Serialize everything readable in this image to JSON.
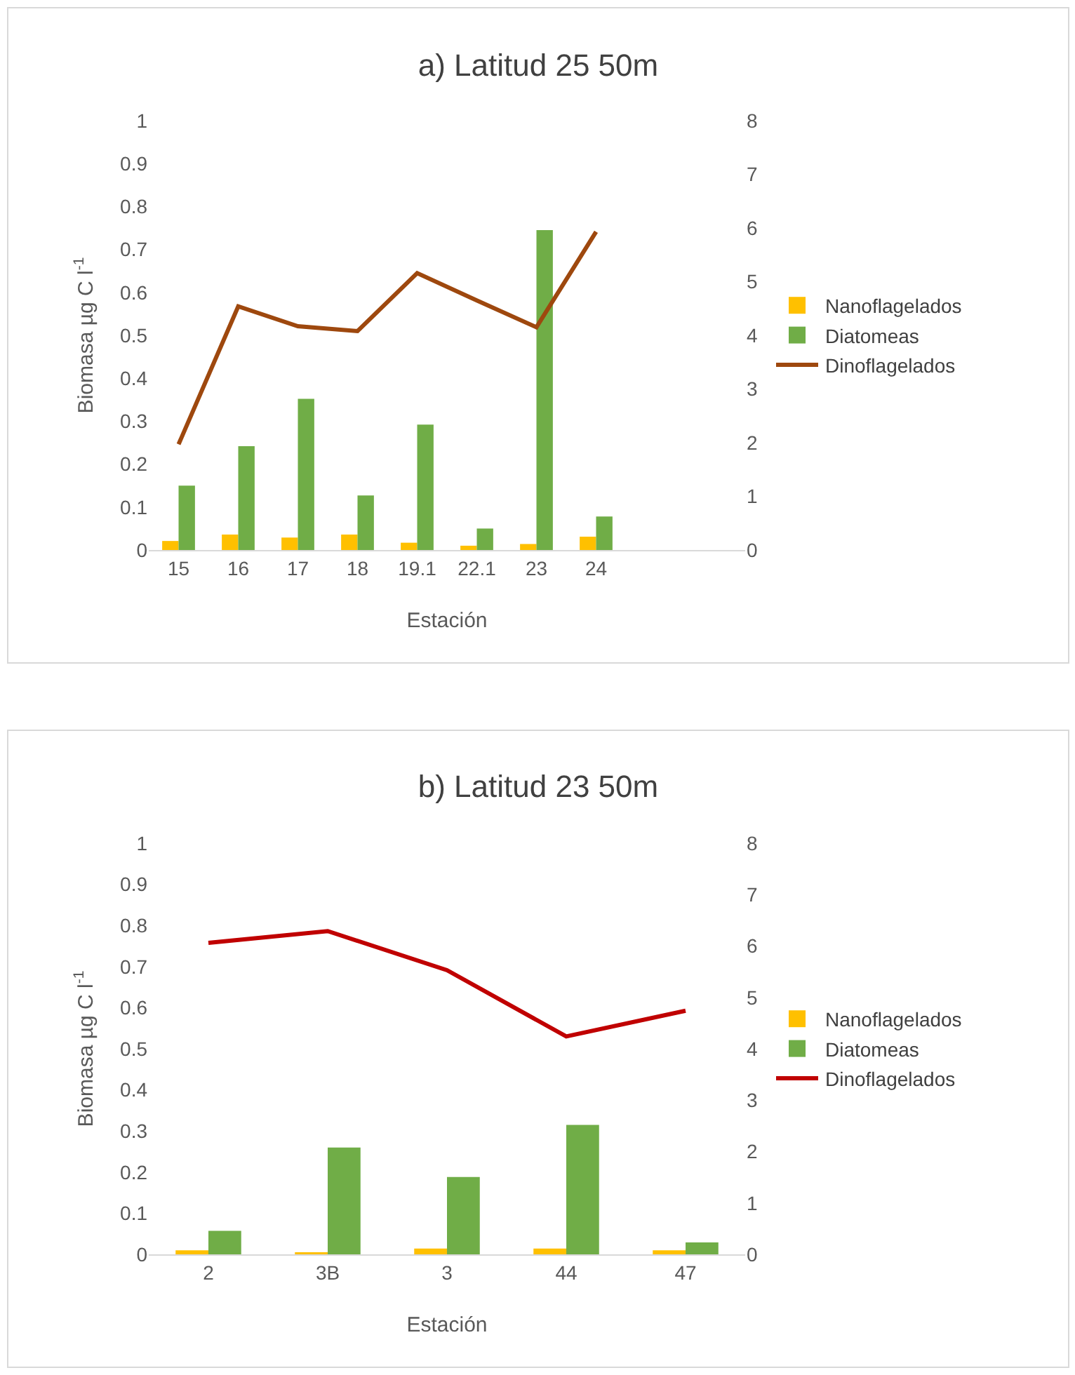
{
  "chart_data": [
    {
      "type": "bar",
      "title": "a) Latitud 25 50m",
      "xlabel": "Estación",
      "ylabel": "Biomasa µg C l$^{-1}$",
      "categories": [
        "15",
        "16",
        "17",
        "18",
        "19.1",
        "22.1",
        "23",
        "24",
        null,
        null
      ],
      "series": [
        {
          "name": "Nanoflagelados",
          "color": "#ffc000",
          "values": [
            0.021,
            0.036,
            0.029,
            0.036,
            0.017,
            0.01,
            0.014,
            0.031,
            null,
            null
          ]
        },
        {
          "name": "Diatomeas",
          "color": "#70ad47",
          "values": [
            0.15,
            0.242,
            0.352,
            0.127,
            0.292,
            0.05,
            0.745,
            0.078,
            null,
            null
          ]
        },
        {
          "name": "Dinoflagelados",
          "color": "#9e480e",
          "type": "line",
          "axis": "y2",
          "values": [
            1.97,
            4.54,
            4.17,
            4.08,
            5.16,
            4.65,
            4.15,
            5.93,
            null,
            null
          ]
        }
      ],
      "ylim": [
        0,
        1
      ],
      "yticks": [
        0,
        0.1,
        0.2,
        0.3,
        0.4,
        0.5,
        0.6,
        0.7,
        0.8,
        0.9,
        1
      ],
      "y2lim": [
        0,
        8
      ],
      "y2ticks": [
        0,
        1,
        2,
        3,
        4,
        5,
        6,
        7,
        8
      ],
      "grid": false,
      "legend": "right"
    },
    {
      "type": "bar",
      "title": "b) Latitud 23 50m",
      "xlabel": "Estación",
      "ylabel": "Biomasa µg C l$^{-1}$",
      "categories": [
        "2",
        "3B",
        "3",
        "44",
        "47"
      ],
      "series": [
        {
          "name": "Nanoflagelados",
          "color": "#ffc000",
          "values": [
            0.01,
            0.005,
            0.014,
            0.014,
            0.01
          ]
        },
        {
          "name": "Diatomeas",
          "color": "#70ad47",
          "values": [
            0.057,
            0.26,
            0.188,
            0.315,
            0.029
          ]
        },
        {
          "name": "Dinoflagelados",
          "color": "#c00000",
          "type": "line",
          "axis": "y2",
          "values": [
            6.06,
            6.29,
            5.53,
            4.24,
            4.74
          ]
        }
      ],
      "ylim": [
        0,
        1
      ],
      "yticks": [
        0,
        0.1,
        0.2,
        0.3,
        0.4,
        0.5,
        0.6,
        0.7,
        0.8,
        0.9,
        1
      ],
      "y2lim": [
        0,
        8
      ],
      "y2ticks": [
        0,
        1,
        2,
        3,
        4,
        5,
        6,
        7,
        8
      ],
      "grid": false,
      "legend": "right"
    }
  ]
}
